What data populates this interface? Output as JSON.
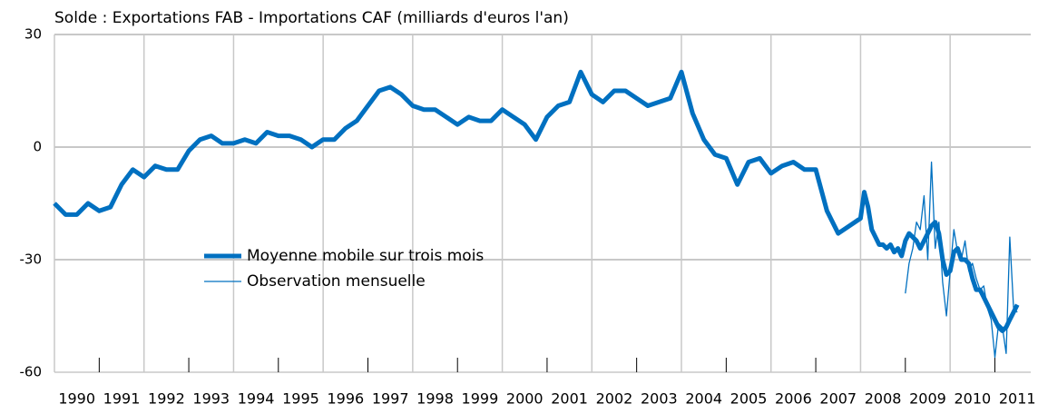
{
  "chart_data": {
    "type": "line",
    "title": "Solde : Exportations FAB - Importations CAF (milliards d'euros l'an)",
    "x": [
      1990,
      1990.25,
      1990.5,
      1990.75,
      1991,
      1991.25,
      1991.5,
      1991.75,
      1992,
      1992.25,
      1992.5,
      1992.75,
      1993,
      1993.25,
      1993.5,
      1993.75,
      1994,
      1994.25,
      1994.5,
      1994.75,
      1995,
      1995.25,
      1995.5,
      1995.75,
      1996,
      1996.25,
      1996.5,
      1996.75,
      1997,
      1997.25,
      1997.5,
      1997.75,
      1998,
      1998.25,
      1998.5,
      1998.75,
      1999,
      1999.25,
      1999.5,
      1999.75,
      2000,
      2000.25,
      2000.5,
      2000.75,
      2001,
      2001.25,
      2001.5,
      2001.75,
      2002,
      2002.25,
      2002.5,
      2002.75,
      2003,
      2003.25,
      2003.5,
      2003.75,
      2004,
      2004.25,
      2004.5,
      2004.75,
      2005,
      2005.25,
      2005.5,
      2005.75,
      2006,
      2006.25,
      2006.5,
      2006.75,
      2007,
      2007.25,
      2007.5,
      2007.75,
      2008,
      2008.083,
      2008.167,
      2008.25,
      2008.333,
      2008.417,
      2008.5,
      2008.583,
      2008.667,
      2008.75,
      2008.833,
      2008.917,
      2009,
      2009.083,
      2009.167,
      2009.25,
      2009.333,
      2009.417,
      2009.5,
      2009.583,
      2009.667,
      2009.75,
      2009.833,
      2009.917,
      2010,
      2010.083,
      2010.167,
      2010.25,
      2010.333,
      2010.417,
      2010.5,
      2010.583,
      2010.667,
      2010.75,
      2010.833,
      2010.917,
      2011,
      2011.083,
      2011.167,
      2011.25,
      2011.333,
      2011.417,
      2011.5
    ],
    "series": [
      {
        "name": "Moyenne mobile sur trois mois",
        "color": "#0070c0",
        "width": 5,
        "values": [
          -15,
          -18,
          -18,
          -15,
          -17,
          -16,
          -10,
          -6,
          -8,
          -5,
          -6,
          -6,
          -1,
          2,
          3,
          1,
          1,
          2,
          1,
          4,
          3,
          3,
          2,
          0,
          2,
          2,
          5,
          7,
          11,
          15,
          16,
          14,
          11,
          10,
          10,
          8,
          6,
          8,
          7,
          7,
          10,
          8,
          6,
          2,
          8,
          11,
          12,
          20,
          14,
          12,
          15,
          15,
          13,
          11,
          12,
          13,
          20,
          9,
          2,
          -2,
          -3,
          -10,
          -4,
          -3,
          -7,
          -5,
          -4,
          -6,
          -6,
          -17,
          -23,
          -21,
          -19,
          -12,
          -16,
          -22,
          -24,
          -26,
          -26,
          -27,
          -26,
          -28,
          -27,
          -29,
          -25,
          -23,
          -24,
          -25,
          -27,
          -25,
          -23,
          -21,
          -20,
          -23,
          -30,
          -34,
          -33,
          -28,
          -27,
          -30,
          -30,
          -31,
          -35,
          -38,
          -38,
          -40,
          -42,
          -44,
          -46,
          -48,
          -49,
          -48,
          -46,
          -44,
          -42
        ]
      },
      {
        "name": "Observation mensuelle",
        "color": "#0070c0",
        "width": 1.3,
        "values": [
          null,
          null,
          null,
          null,
          null,
          null,
          null,
          null,
          null,
          null,
          null,
          null,
          null,
          null,
          null,
          null,
          null,
          null,
          null,
          null,
          null,
          null,
          null,
          null,
          null,
          null,
          null,
          null,
          null,
          null,
          null,
          null,
          null,
          null,
          null,
          null,
          null,
          null,
          null,
          null,
          null,
          null,
          null,
          null,
          null,
          null,
          null,
          null,
          null,
          null,
          null,
          null,
          null,
          null,
          null,
          null,
          null,
          null,
          null,
          null,
          null,
          null,
          null,
          null,
          null,
          null,
          null,
          null,
          null,
          null,
          null,
          null,
          null,
          null,
          null,
          null,
          null,
          null,
          null,
          null,
          null,
          null,
          null,
          null,
          -39,
          -31,
          -27,
          -20,
          -22,
          -13,
          -30,
          -4,
          -27,
          -20,
          -36,
          -45,
          -33,
          -22,
          -28,
          -30,
          -25,
          -33,
          -31,
          -35,
          -38,
          -37,
          -43,
          -46,
          -56,
          -47,
          -48,
          -55,
          -24,
          -43,
          -44
        ]
      }
    ],
    "xlim": [
      1990,
      2011.8
    ],
    "xticks": [
      1990,
      1991,
      1992,
      1993,
      1994,
      1995,
      1996,
      1997,
      1998,
      1999,
      2000,
      2001,
      2002,
      2003,
      2004,
      2005,
      2006,
      2007,
      2008,
      2009,
      2010,
      2011
    ],
    "ylim": [
      -60,
      30
    ],
    "yticks": [
      -60,
      -30,
      0,
      30
    ],
    "grid": true
  }
}
